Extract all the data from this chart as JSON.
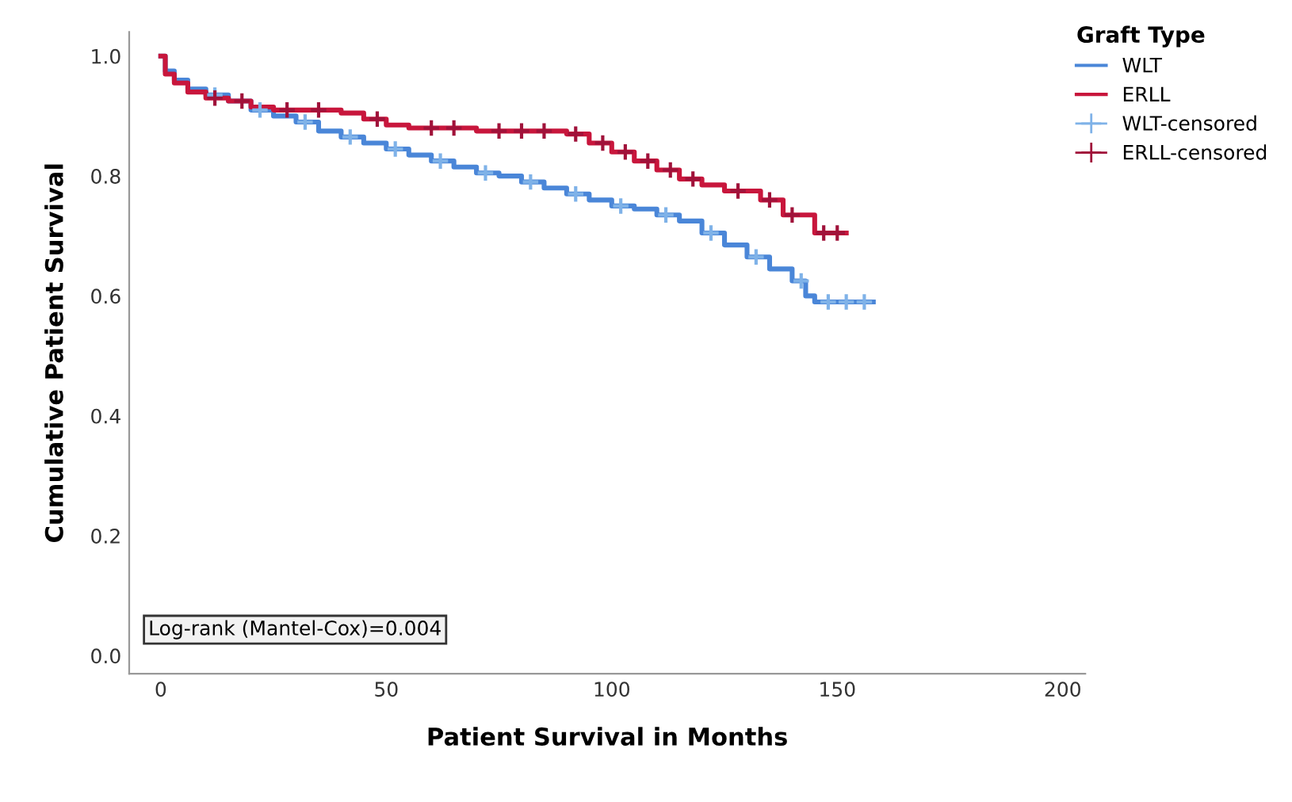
{
  "chart_data": {
    "type": "step",
    "xlabel": "Patient Survival in Months",
    "ylabel": "Cumulative Patient Survival",
    "legend_title": "Graft Type",
    "legend": "top right",
    "grid": false,
    "xlim": [
      -7,
      205
    ],
    "xticks": [
      0,
      50,
      100,
      150,
      200
    ],
    "ylim": [
      -0.03,
      1.04
    ],
    "yticks": [
      {
        "value": 0,
        "label": "0.0"
      },
      0.2,
      0.4,
      0.6,
      0.8,
      {
        "value": 1,
        "label": "1.0"
      }
    ],
    "annotations": [
      "Log-rank (Mantel-Cox)=0.004"
    ],
    "series": [
      {
        "name": "WLT",
        "color": "#4a86d8",
        "x": [
          0,
          1,
          3,
          6,
          10,
          15,
          20,
          25,
          30,
          35,
          40,
          45,
          50,
          55,
          60,
          65,
          70,
          75,
          80,
          85,
          90,
          95,
          100,
          105,
          110,
          115,
          120,
          125,
          130,
          135,
          140,
          143,
          145,
          158
        ],
        "values": [
          1.0,
          0.975,
          0.96,
          0.945,
          0.935,
          0.925,
          0.91,
          0.9,
          0.89,
          0.875,
          0.865,
          0.855,
          0.845,
          0.835,
          0.825,
          0.815,
          0.805,
          0.8,
          0.79,
          0.78,
          0.77,
          0.76,
          0.75,
          0.745,
          0.735,
          0.725,
          0.705,
          0.685,
          0.665,
          0.645,
          0.625,
          0.6,
          0.59,
          0.59
        ]
      },
      {
        "name": "ERLL",
        "color": "#c8163c",
        "x": [
          0,
          1,
          3,
          6,
          10,
          15,
          20,
          25,
          40,
          45,
          50,
          55,
          70,
          90,
          95,
          100,
          105,
          110,
          115,
          120,
          125,
          133,
          138,
          145,
          152
        ],
        "values": [
          1.0,
          0.97,
          0.955,
          0.94,
          0.93,
          0.925,
          0.915,
          0.91,
          0.905,
          0.895,
          0.885,
          0.88,
          0.875,
          0.87,
          0.855,
          0.84,
          0.825,
          0.81,
          0.795,
          0.785,
          0.775,
          0.76,
          0.735,
          0.705,
          0.705
        ]
      },
      {
        "name": "WLT-censored",
        "type": "scatter",
        "marker": "cross",
        "color": "#7fb2e8",
        "x": [
          12,
          22,
          32,
          42,
          52,
          62,
          72,
          82,
          92,
          102,
          112,
          122,
          132,
          142,
          148,
          152,
          156
        ],
        "values": [
          0.935,
          0.91,
          0.89,
          0.865,
          0.845,
          0.825,
          0.805,
          0.79,
          0.77,
          0.75,
          0.735,
          0.705,
          0.665,
          0.625,
          0.59,
          0.59,
          0.59
        ]
      },
      {
        "name": "ERLL-censored",
        "type": "scatter",
        "marker": "cross",
        "color": "#a0123a",
        "x": [
          12,
          18,
          28,
          35,
          48,
          60,
          65,
          75,
          80,
          85,
          92,
          98,
          103,
          108,
          113,
          118,
          128,
          135,
          140,
          147,
          150
        ],
        "values": [
          0.93,
          0.925,
          0.91,
          0.91,
          0.895,
          0.88,
          0.88,
          0.875,
          0.875,
          0.875,
          0.87,
          0.855,
          0.84,
          0.825,
          0.81,
          0.795,
          0.775,
          0.76,
          0.735,
          0.705,
          0.705
        ]
      }
    ]
  }
}
